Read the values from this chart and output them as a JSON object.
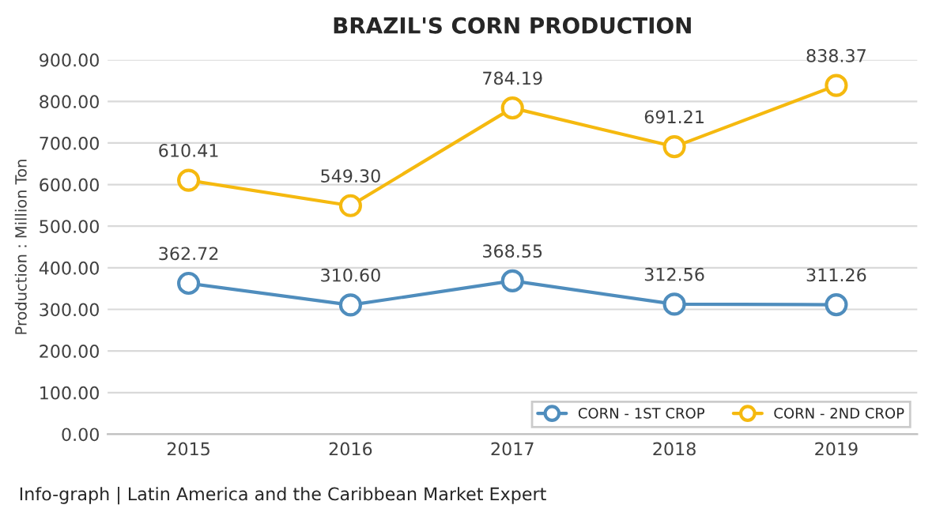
{
  "chart_data": {
    "type": "line",
    "title": "BRAZIL'S CORN PRODUCTION",
    "ylabel": "Production : Million Ton",
    "categories": [
      "2015",
      "2016",
      "2017",
      "2018",
      "2019"
    ],
    "series": [
      {
        "name": "CORN - 1ST CROP",
        "color": "#4f8dbd",
        "values": [
          362.72,
          310.6,
          368.55,
          312.56,
          311.26
        ],
        "value_labels": [
          "362.72",
          "310.60",
          "368.55",
          "312.56",
          "311.26"
        ]
      },
      {
        "name": "CORN - 2ND CROP",
        "color": "#f5b90f",
        "values": [
          610.41,
          549.3,
          784.19,
          691.21,
          838.37
        ],
        "value_labels": [
          "610.41",
          "549.30",
          "784.19",
          "691.21",
          "838.37"
        ]
      }
    ],
    "ylim": [
      0,
      900
    ],
    "yticks": [
      {
        "value": 0,
        "label": "0.00"
      },
      {
        "value": 100,
        "label": "100.00"
      },
      {
        "value": 200,
        "label": "200.00"
      },
      {
        "value": 300,
        "label": "300.00"
      },
      {
        "value": 400,
        "label": "400.00"
      },
      {
        "value": 500,
        "label": "500.00"
      },
      {
        "value": 600,
        "label": "600.00"
      },
      {
        "value": 700,
        "label": "700.00"
      },
      {
        "value": 800,
        "label": "800.00"
      },
      {
        "value": 900,
        "label": "900.00"
      }
    ],
    "grid": "y",
    "legend": "bottom right",
    "marker": "circle",
    "line_style": "solid",
    "annotations": [
      "Info-graph | Latin America and the Caribbean Market Expert"
    ]
  }
}
